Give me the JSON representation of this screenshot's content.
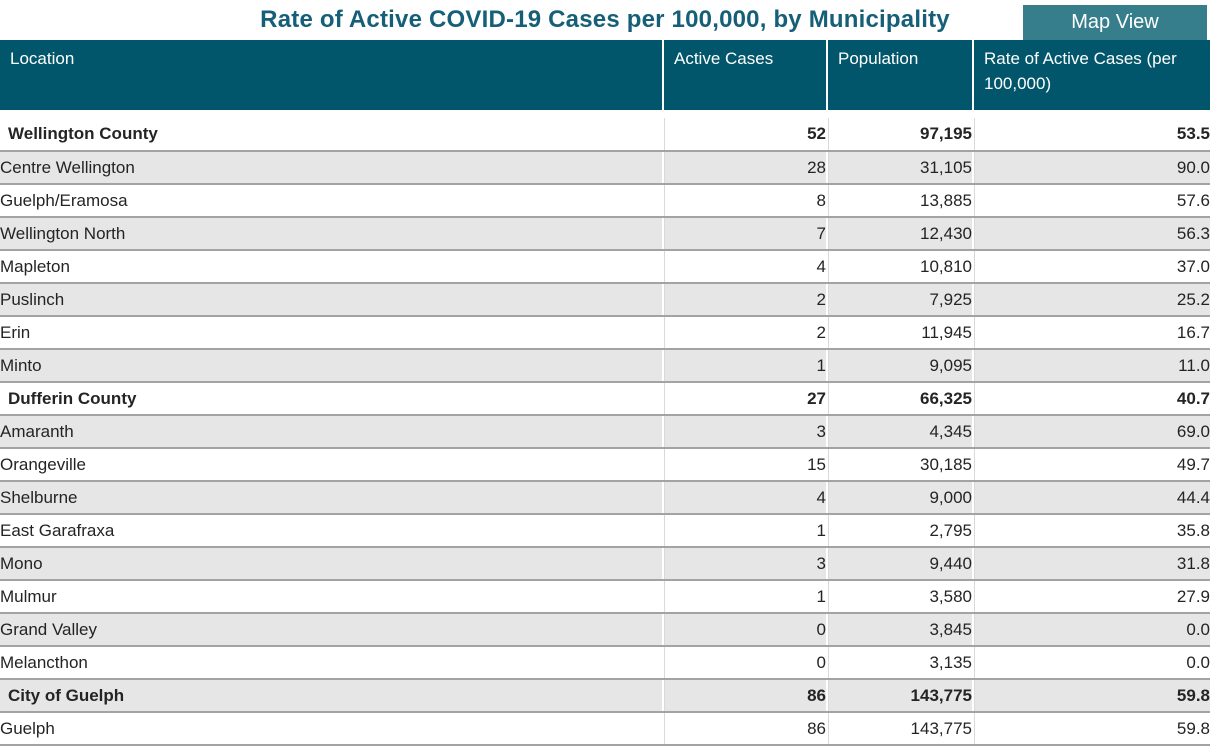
{
  "page": {
    "title": "Rate of Active COVID-19 Cases per 100,000, by Municipality",
    "map_view_button_label": "Map View"
  },
  "colors": {
    "title_text": "#156078",
    "header_bg": "#02566B",
    "button_bg": "#377E8D",
    "banded_row_bg": "#E6E6E6",
    "row_border": "#A3A3A3",
    "body_text": "#252423"
  },
  "chart_data": {
    "type": "table",
    "title": "Rate of Active COVID-19 Cases per 100,000, by Municipality",
    "columns": [
      "Location",
      "Active Cases",
      "Population",
      "Rate of Active Cases (per 100,000)"
    ],
    "rows": [
      {
        "location": "Wellington County",
        "level": "county",
        "active_cases": "52",
        "population": "97,195",
        "rate": "53.5"
      },
      {
        "location": "Centre Wellington",
        "level": "municipality",
        "active_cases": "28",
        "population": "31,105",
        "rate": "90.0"
      },
      {
        "location": "Guelph/Eramosa",
        "level": "municipality",
        "active_cases": "8",
        "population": "13,885",
        "rate": "57.6"
      },
      {
        "location": "Wellington North",
        "level": "municipality",
        "active_cases": "7",
        "population": "12,430",
        "rate": "56.3"
      },
      {
        "location": "Mapleton",
        "level": "municipality",
        "active_cases": "4",
        "population": "10,810",
        "rate": "37.0"
      },
      {
        "location": "Puslinch",
        "level": "municipality",
        "active_cases": "2",
        "population": "7,925",
        "rate": "25.2"
      },
      {
        "location": "Erin",
        "level": "municipality",
        "active_cases": "2",
        "population": "11,945",
        "rate": "16.7"
      },
      {
        "location": "Minto",
        "level": "municipality",
        "active_cases": "1",
        "population": "9,095",
        "rate": "11.0"
      },
      {
        "location": "Dufferin County",
        "level": "county",
        "active_cases": "27",
        "population": "66,325",
        "rate": "40.7"
      },
      {
        "location": "Amaranth",
        "level": "municipality",
        "active_cases": "3",
        "population": "4,345",
        "rate": "69.0"
      },
      {
        "location": "Orangeville",
        "level": "municipality",
        "active_cases": "15",
        "population": "30,185",
        "rate": "49.7"
      },
      {
        "location": "Shelburne",
        "level": "municipality",
        "active_cases": "4",
        "population": "9,000",
        "rate": "44.4"
      },
      {
        "location": "East Garafraxa",
        "level": "municipality",
        "active_cases": "1",
        "population": "2,795",
        "rate": "35.8"
      },
      {
        "location": "Mono",
        "level": "municipality",
        "active_cases": "3",
        "population": "9,440",
        "rate": "31.8"
      },
      {
        "location": "Mulmur",
        "level": "municipality",
        "active_cases": "1",
        "population": "3,580",
        "rate": "27.9"
      },
      {
        "location": "Grand Valley",
        "level": "municipality",
        "active_cases": "0",
        "population": "3,845",
        "rate": "0.0"
      },
      {
        "location": "Melancthon",
        "level": "municipality",
        "active_cases": "0",
        "population": "3,135",
        "rate": "0.0"
      },
      {
        "location": "City of Guelph",
        "level": "county",
        "active_cases": "86",
        "population": "143,775",
        "rate": "59.8"
      },
      {
        "location": "Guelph",
        "level": "municipality",
        "active_cases": "86",
        "population": "143,775",
        "rate": "59.8"
      }
    ]
  }
}
